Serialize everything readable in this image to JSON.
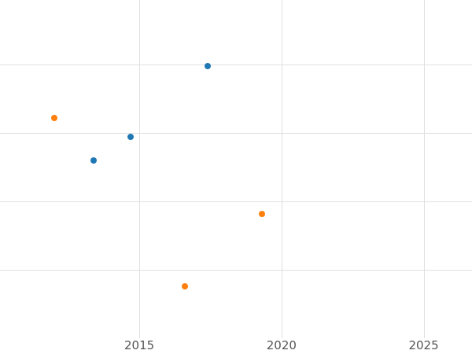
{
  "chart_data": {
    "type": "scatter",
    "title": "",
    "xlabel": "",
    "ylabel": "",
    "grid": true,
    "legend_position": "none",
    "xlim": [
      2010.1,
      2026.7
    ],
    "ylim": [
      0,
      4.94
    ],
    "x_ticks": [
      {
        "value": 2015,
        "label": "2015"
      },
      {
        "value": 2020,
        "label": "2020"
      },
      {
        "value": 2025,
        "label": "2025"
      }
    ],
    "y_gridlines": [
      1,
      2,
      3,
      4
    ],
    "series": [
      {
        "name": "blue-series",
        "color": "#1f77b4",
        "points": [
          {
            "x": 2017.4,
            "y": 3.97
          },
          {
            "x": 2014.7,
            "y": 2.94
          },
          {
            "x": 2013.4,
            "y": 2.6
          }
        ]
      },
      {
        "name": "orange-series",
        "color": "#ff7f0e",
        "points": [
          {
            "x": 2012.0,
            "y": 3.22
          },
          {
            "x": 2019.3,
            "y": 1.82
          },
          {
            "x": 2016.6,
            "y": 0.76
          }
        ]
      }
    ],
    "colors": {
      "grid": "#e0e0e0",
      "tick_label": "#555555",
      "background": "#ffffff"
    }
  }
}
